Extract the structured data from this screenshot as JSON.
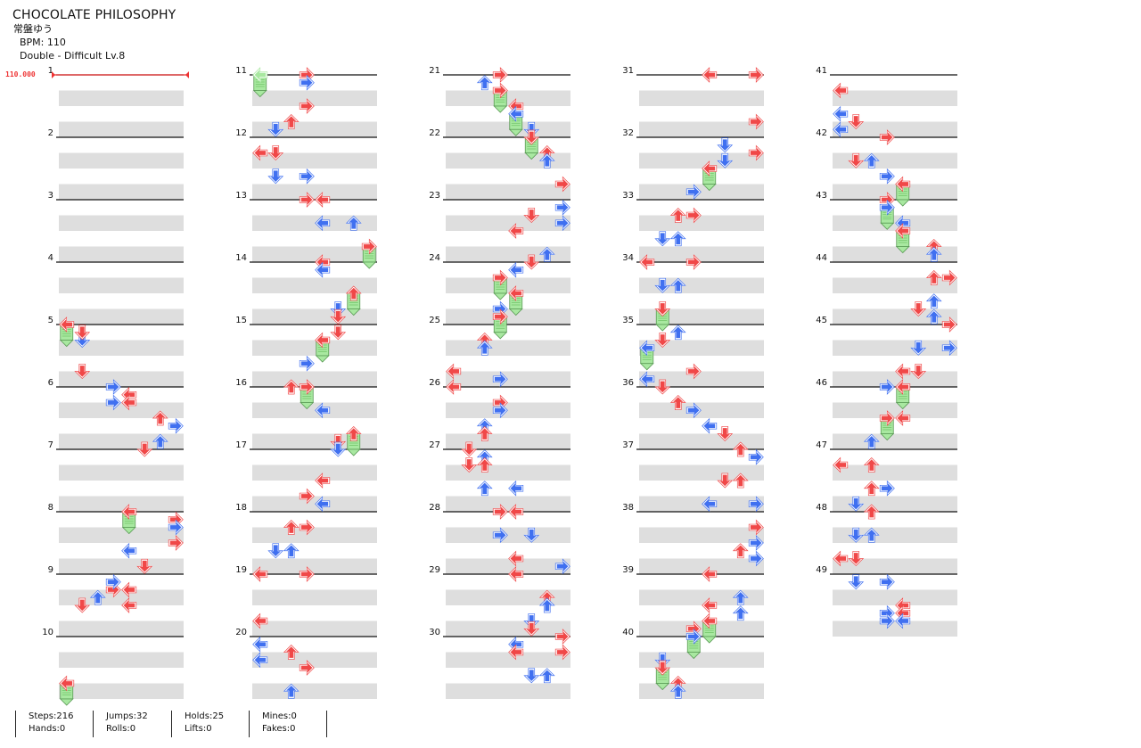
{
  "song": {
    "title": "CHOCOLATE PHILOSOPHY",
    "artist": "常盤ゆう",
    "bpm": "BPM: 110",
    "difficulty": "Double - Difficult Lv.8"
  },
  "bpm_marker": "110.000",
  "measure_labels": [
    "1",
    "2",
    "3",
    "4",
    "5",
    "6",
    "7",
    "8",
    "9",
    "10",
    "11",
    "12",
    "13",
    "14",
    "15",
    "16",
    "17",
    "18",
    "19",
    "20",
    "21",
    "22",
    "23",
    "24",
    "25",
    "26",
    "27",
    "28",
    "29",
    "30",
    "31",
    "32",
    "33",
    "34",
    "35",
    "36",
    "37",
    "38",
    "39",
    "40",
    "41",
    "42",
    "43",
    "44",
    "45",
    "46",
    "47",
    "48",
    "49"
  ],
  "colors": {
    "quarter": "#f04848",
    "eighth": "#4070f0",
    "hold": "#a8e8a0",
    "band": "#dedede"
  },
  "notes": [
    {
      "m": 5,
      "b": 0,
      "l": 0,
      "c": "r",
      "hold": 0.25
    },
    {
      "m": 5,
      "b": 0.25,
      "l": 1,
      "c": "b"
    },
    {
      "m": 5,
      "b": 0.125,
      "l": 1,
      "c": "r"
    },
    {
      "m": 5,
      "b": 0.75,
      "l": 1,
      "c": "r"
    },
    {
      "m": 5,
      "b": 1,
      "l": 3,
      "c": "b"
    },
    {
      "m": 5,
      "b": 1.25,
      "l": 3,
      "c": "b"
    },
    {
      "m": 5,
      "b": 1.125,
      "l": 4,
      "c": "r"
    },
    {
      "m": 6,
      "b": 0.25,
      "l": 4,
      "c": "r"
    },
    {
      "m": 6,
      "b": 0.5,
      "l": 6,
      "c": "r"
    },
    {
      "m": 6,
      "b": 0.625,
      "l": 7,
      "c": "b"
    },
    {
      "m": 6,
      "b": 0.875,
      "l": 6,
      "c": "b"
    },
    {
      "m": 6,
      "b": 1,
      "l": 5,
      "c": "r"
    },
    {
      "m": 7,
      "b": 1,
      "l": 4,
      "c": "r",
      "hold": 0.25
    },
    {
      "m": 7,
      "b": 1.125,
      "l": 7,
      "c": "r"
    },
    {
      "m": 7,
      "b": 1.25,
      "l": 7,
      "c": "b"
    },
    {
      "m": 7,
      "b": 1.5,
      "l": 7,
      "c": "r"
    },
    {
      "m": 8,
      "b": 0.625,
      "l": 4,
      "c": "b"
    },
    {
      "m": 8,
      "b": 0.875,
      "l": 5,
      "c": "r"
    },
    {
      "m": 8,
      "b": 1.25,
      "l": 3,
      "c": "r"
    },
    {
      "m": 8,
      "b": 1.25,
      "l": 4,
      "c": "r"
    },
    {
      "m": 8,
      "b": 1.5,
      "l": 4,
      "c": "r"
    },
    {
      "m": 9,
      "b": 0.125,
      "l": 3,
      "c": "b"
    },
    {
      "m": 9,
      "b": 0.375,
      "l": 2,
      "c": "b"
    },
    {
      "m": 9,
      "b": 0.5,
      "l": 1,
      "c": "r"
    },
    {
      "m": 10,
      "b": 0.75,
      "l": 0,
      "c": "r",
      "hold": 0.25
    },
    {
      "m": 11,
      "b": 0,
      "l": 0,
      "c": "g",
      "hold": 0.25
    },
    {
      "m": 11,
      "b": 0,
      "l": 3,
      "c": "r"
    },
    {
      "m": 11,
      "b": 0.125,
      "l": 3,
      "c": "b"
    },
    {
      "m": 11,
      "b": 0.5,
      "l": 3,
      "c": "r"
    },
    {
      "m": 11,
      "b": 0.75,
      "l": 2,
      "c": "r"
    },
    {
      "m": 11,
      "b": 0.875,
      "l": 1,
      "c": "b"
    },
    {
      "m": 12,
      "b": 0.25,
      "l": 0,
      "c": "r"
    },
    {
      "m": 12,
      "b": 0.25,
      "l": 1,
      "c": "r"
    },
    {
      "m": 12,
      "b": 0.625,
      "l": 1,
      "c": "b"
    },
    {
      "m": 12,
      "b": 0.625,
      "l": 3,
      "c": "b"
    },
    {
      "m": 13,
      "b": 0,
      "l": 3,
      "c": "r"
    },
    {
      "m": 13,
      "b": 0,
      "l": 4,
      "c": "r"
    },
    {
      "m": 13,
      "b": 0.375,
      "l": 4,
      "c": "b"
    },
    {
      "m": 13,
      "b": 0.375,
      "l": 6,
      "c": "b"
    },
    {
      "m": 13,
      "b": 0.75,
      "l": 7,
      "c": "r",
      "hold": 0.25
    },
    {
      "m": 14,
      "b": 0,
      "l": 4,
      "c": "r"
    },
    {
      "m": 14,
      "b": 0.125,
      "l": 4,
      "c": "b"
    },
    {
      "m": 14,
      "b": 0.5,
      "l": 6,
      "c": "r",
      "hold": 0.25
    },
    {
      "m": 14,
      "b": 0.75,
      "l": 5,
      "c": "b"
    },
    {
      "m": 14,
      "b": 0.875,
      "l": 5,
      "c": "r"
    },
    {
      "m": 15,
      "b": 0.125,
      "l": 5,
      "c": "r"
    },
    {
      "m": 15,
      "b": 0.25,
      "l": 4,
      "c": "r",
      "hold": 0.25
    },
    {
      "m": 15,
      "b": 0.625,
      "l": 3,
      "c": "b"
    },
    {
      "m": 16,
      "b": 0,
      "l": 2,
      "c": "r"
    },
    {
      "m": 16,
      "b": 0,
      "l": 3,
      "c": "r",
      "hold": 0.25
    },
    {
      "m": 16,
      "b": 0.375,
      "l": 4,
      "c": "b"
    },
    {
      "m": 16,
      "b": 0.75,
      "l": 6,
      "c": "r",
      "hold": 0.25
    },
    {
      "m": 16,
      "b": 0.875,
      "l": 5,
      "c": "r"
    },
    {
      "m": 17,
      "b": 0,
      "l": 5,
      "c": "b"
    },
    {
      "m": 17,
      "b": 0.5,
      "l": 4,
      "c": "r"
    },
    {
      "m": 17,
      "b": 0.75,
      "l": 3,
      "c": "r"
    },
    {
      "m": 17,
      "b": 0.875,
      "l": 4,
      "c": "b"
    },
    {
      "m": 18,
      "b": 0.25,
      "l": 2,
      "c": "r"
    },
    {
      "m": 18,
      "b": 0.25,
      "l": 3,
      "c": "r"
    },
    {
      "m": 18,
      "b": 0.625,
      "l": 1,
      "c": "b"
    },
    {
      "m": 18,
      "b": 0.625,
      "l": 2,
      "c": "b"
    },
    {
      "m": 19,
      "b": 0,
      "l": 0,
      "c": "r"
    },
    {
      "m": 19,
      "b": 0,
      "l": 3,
      "c": "r"
    },
    {
      "m": 19,
      "b": 0.75,
      "l": 0,
      "c": "r"
    },
    {
      "m": 20,
      "b": 0.125,
      "l": 0,
      "c": "b"
    },
    {
      "m": 20,
      "b": 0.375,
      "l": 0,
      "c": "b"
    },
    {
      "m": 20,
      "b": 0.25,
      "l": 2,
      "c": "r"
    },
    {
      "m": 20,
      "b": 0.5,
      "l": 3,
      "c": "r"
    },
    {
      "m": 20,
      "b": 0.875,
      "l": 2,
      "c": "b"
    },
    {
      "m": 21,
      "b": 0,
      "l": 3,
      "c": "r"
    },
    {
      "m": 21,
      "b": 0.125,
      "l": 2,
      "c": "b"
    },
    {
      "m": 21,
      "b": 0.25,
      "l": 3,
      "c": "r",
      "hold": 0.25
    },
    {
      "m": 21,
      "b": 0.5,
      "l": 4,
      "c": "r"
    },
    {
      "m": 21,
      "b": 0.625,
      "l": 4,
      "c": "b",
      "hold": 0.25
    },
    {
      "m": 21,
      "b": 0.875,
      "l": 5,
      "c": "b"
    },
    {
      "m": 22,
      "b": 0,
      "l": 5,
      "c": "r",
      "hold": 0.25
    },
    {
      "m": 22,
      "b": 0.25,
      "l": 6,
      "c": "r"
    },
    {
      "m": 22,
      "b": 0.375,
      "l": 6,
      "c": "b"
    },
    {
      "m": 22,
      "b": 0.75,
      "l": 7,
      "c": "r"
    },
    {
      "m": 23,
      "b": 0.125,
      "l": 7,
      "c": "b"
    },
    {
      "m": 23,
      "b": 0.375,
      "l": 7,
      "c": "b"
    },
    {
      "m": 23,
      "b": 0.25,
      "l": 5,
      "c": "r"
    },
    {
      "m": 23,
      "b": 0.5,
      "l": 4,
      "c": "r"
    },
    {
      "m": 23,
      "b": 0.875,
      "l": 6,
      "c": "b"
    },
    {
      "m": 24,
      "b": 0,
      "l": 5,
      "c": "r"
    },
    {
      "m": 24,
      "b": 0.125,
      "l": 4,
      "c": "b"
    },
    {
      "m": 24,
      "b": 0.25,
      "l": 3,
      "c": "r",
      "hold": 0.25
    },
    {
      "m": 24,
      "b": 0.5,
      "l": 4,
      "c": "r",
      "hold": 0.25
    },
    {
      "m": 24,
      "b": 0.75,
      "l": 3,
      "c": "b"
    },
    {
      "m": 24,
      "b": 0.875,
      "l": 3,
      "c": "r",
      "hold": 0.25
    },
    {
      "m": 25,
      "b": 0.25,
      "l": 2,
      "c": "r"
    },
    {
      "m": 25,
      "b": 0.375,
      "l": 2,
      "c": "b"
    },
    {
      "m": 25,
      "b": 0.75,
      "l": 0,
      "c": "r"
    },
    {
      "m": 25,
      "b": 1,
      "l": 0,
      "c": "r"
    },
    {
      "m": 25,
      "b": 0.875,
      "l": 3,
      "c": "b"
    },
    {
      "m": 26,
      "b": 0.25,
      "l": 3,
      "c": "r"
    },
    {
      "m": 26,
      "b": 0.375,
      "l": 3,
      "c": "b"
    },
    {
      "m": 26,
      "b": 0.625,
      "l": 2,
      "c": "b"
    },
    {
      "m": 26,
      "b": 0.75,
      "l": 2,
      "c": "r"
    },
    {
      "m": 27,
      "b": 0,
      "l": 1,
      "c": "r"
    },
    {
      "m": 27,
      "b": 0.125,
      "l": 2,
      "c": "b"
    },
    {
      "m": 27,
      "b": 0.25,
      "l": 1,
      "c": "r"
    },
    {
      "m": 27,
      "b": 0.25,
      "l": 2,
      "c": "r"
    },
    {
      "m": 27,
      "b": 0.625,
      "l": 2,
      "c": "b"
    },
    {
      "m": 27,
      "b": 0.625,
      "l": 4,
      "c": "b"
    },
    {
      "m": 28,
      "b": 0,
      "l": 3,
      "c": "r"
    },
    {
      "m": 28,
      "b": 0,
      "l": 4,
      "c": "r"
    },
    {
      "m": 28,
      "b": 0.375,
      "l": 3,
      "c": "b"
    },
    {
      "m": 28,
      "b": 0.375,
      "l": 5,
      "c": "b"
    },
    {
      "m": 28,
      "b": 0.75,
      "l": 4,
      "c": "r"
    },
    {
      "m": 29,
      "b": 0,
      "l": 4,
      "c": "r"
    },
    {
      "m": 28,
      "b": 0.875,
      "l": 7,
      "c": "b"
    },
    {
      "m": 29,
      "b": 0.375,
      "l": 6,
      "c": "r"
    },
    {
      "m": 29,
      "b": 0.5,
      "l": 6,
      "c": "b"
    },
    {
      "m": 29,
      "b": 0.75,
      "l": 5,
      "c": "b"
    },
    {
      "m": 29,
      "b": 0.875,
      "l": 5,
      "c": "r"
    },
    {
      "m": 30,
      "b": 0,
      "l": 7,
      "c": "r"
    },
    {
      "m": 30,
      "b": 0.125,
      "l": 4,
      "c": "b"
    },
    {
      "m": 30,
      "b": 0.25,
      "l": 4,
      "c": "r"
    },
    {
      "m": 30,
      "b": 0.25,
      "l": 7,
      "c": "r"
    },
    {
      "m": 30,
      "b": 0.625,
      "l": 5,
      "c": "b"
    },
    {
      "m": 30,
      "b": 0.625,
      "l": 6,
      "c": "b"
    },
    {
      "m": 31,
      "b": 0,
      "l": 4,
      "c": "r"
    },
    {
      "m": 31,
      "b": 0,
      "l": 7,
      "c": "r"
    },
    {
      "m": 31,
      "b": 0.75,
      "l": 7,
      "c": "r"
    },
    {
      "m": 32,
      "b": 0.125,
      "l": 5,
      "c": "b"
    },
    {
      "m": 32,
      "b": 0.375,
      "l": 5,
      "c": "b"
    },
    {
      "m": 32,
      "b": 0.25,
      "l": 7,
      "c": "r"
    },
    {
      "m": 32,
      "b": 0.5,
      "l": 4,
      "c": "r",
      "hold": 0.25
    },
    {
      "m": 32,
      "b": 0.875,
      "l": 3,
      "c": "b"
    },
    {
      "m": 33,
      "b": 0.25,
      "l": 2,
      "c": "r"
    },
    {
      "m": 33,
      "b": 0.25,
      "l": 3,
      "c": "r"
    },
    {
      "m": 33,
      "b": 0.625,
      "l": 1,
      "c": "b"
    },
    {
      "m": 33,
      "b": 0.625,
      "l": 2,
      "c": "b"
    },
    {
      "m": 34,
      "b": 0,
      "l": 0,
      "c": "r"
    },
    {
      "m": 34,
      "b": 0,
      "l": 3,
      "c": "r"
    },
    {
      "m": 34,
      "b": 0.375,
      "l": 1,
      "c": "b"
    },
    {
      "m": 34,
      "b": 0.375,
      "l": 2,
      "c": "b"
    },
    {
      "m": 34,
      "b": 0.75,
      "l": 1,
      "c": "r",
      "hold": 0.25
    },
    {
      "m": 35,
      "b": 0.125,
      "l": 2,
      "c": "b"
    },
    {
      "m": 35,
      "b": 0.25,
      "l": 1,
      "c": "r"
    },
    {
      "m": 35,
      "b": 0.375,
      "l": 0,
      "c": "b",
      "hold": 0.25
    },
    {
      "m": 35,
      "b": 0.75,
      "l": 3,
      "c": "r"
    },
    {
      "m": 35,
      "b": 0.875,
      "l": 0,
      "c": "b"
    },
    {
      "m": 36,
      "b": 0,
      "l": 1,
      "c": "r"
    },
    {
      "m": 36,
      "b": 0.25,
      "l": 2,
      "c": "r"
    },
    {
      "m": 36,
      "b": 0.375,
      "l": 3,
      "c": "b"
    },
    {
      "m": 36,
      "b": 0.625,
      "l": 4,
      "c": "b"
    },
    {
      "m": 36,
      "b": 0.75,
      "l": 5,
      "c": "r"
    },
    {
      "m": 37,
      "b": 0,
      "l": 6,
      "c": "r"
    },
    {
      "m": 37,
      "b": 0.125,
      "l": 7,
      "c": "b"
    },
    {
      "m": 37,
      "b": 0.5,
      "l": 5,
      "c": "r"
    },
    {
      "m": 37,
      "b": 0.5,
      "l": 6,
      "c": "r"
    },
    {
      "m": 37,
      "b": 0.875,
      "l": 4,
      "c": "b"
    },
    {
      "m": 37,
      "b": 0.875,
      "l": 7,
      "c": "b"
    },
    {
      "m": 38,
      "b": 0.25,
      "l": 7,
      "c": "r"
    },
    {
      "m": 38,
      "b": 0.5,
      "l": 7,
      "c": "b"
    },
    {
      "m": 38,
      "b": 0.625,
      "l": 6,
      "c": "r"
    },
    {
      "m": 38,
      "b": 0.75,
      "l": 7,
      "c": "b"
    },
    {
      "m": 39,
      "b": 0,
      "l": 4,
      "c": "r"
    },
    {
      "m": 39,
      "b": 0.375,
      "l": 6,
      "c": "b"
    },
    {
      "m": 39,
      "b": 0.625,
      "l": 6,
      "c": "b"
    },
    {
      "m": 39,
      "b": 0.5,
      "l": 4,
      "c": "r"
    },
    {
      "m": 39,
      "b": 0.75,
      "l": 4,
      "c": "r",
      "hold": 0.25
    },
    {
      "m": 39,
      "b": 0.875,
      "l": 3,
      "c": "r"
    },
    {
      "m": 40,
      "b": 0,
      "l": 3,
      "c": "b",
      "hold": 0.25
    },
    {
      "m": 40,
      "b": 0.375,
      "l": 1,
      "c": "b"
    },
    {
      "m": 40,
      "b": 0.5,
      "l": 1,
      "c": "r",
      "hold": 0.25
    },
    {
      "m": 40,
      "b": 0.75,
      "l": 2,
      "c": "r"
    },
    {
      "m": 40,
      "b": 0.875,
      "l": 2,
      "c": "b"
    },
    {
      "m": 41,
      "b": 0.25,
      "l": 0,
      "c": "r"
    },
    {
      "m": 41,
      "b": 0.625,
      "l": 0,
      "c": "b"
    },
    {
      "m": 41,
      "b": 0.75,
      "l": 1,
      "c": "r"
    },
    {
      "m": 41,
      "b": 0.875,
      "l": 0,
      "c": "b"
    },
    {
      "m": 42,
      "b": 0,
      "l": 3,
      "c": "r"
    },
    {
      "m": 42,
      "b": 0.375,
      "l": 1,
      "c": "r"
    },
    {
      "m": 42,
      "b": 0.375,
      "l": 2,
      "c": "b"
    },
    {
      "m": 42,
      "b": 0.625,
      "l": 3,
      "c": "b"
    },
    {
      "m": 42,
      "b": 0.75,
      "l": 4,
      "c": "r",
      "hold": 0.25
    },
    {
      "m": 43,
      "b": 0,
      "l": 3,
      "c": "r"
    },
    {
      "m": 43,
      "b": 0.125,
      "l": 3,
      "c": "b",
      "hold": 0.25
    },
    {
      "m": 43,
      "b": 0.375,
      "l": 4,
      "c": "b"
    },
    {
      "m": 43,
      "b": 0.5,
      "l": 4,
      "c": "r",
      "hold": 0.25
    },
    {
      "m": 43,
      "b": 0.75,
      "l": 6,
      "c": "r"
    },
    {
      "m": 43,
      "b": 0.875,
      "l": 6,
      "c": "b"
    },
    {
      "m": 44,
      "b": 0.25,
      "l": 6,
      "c": "r"
    },
    {
      "m": 44,
      "b": 0.25,
      "l": 7,
      "c": "r"
    },
    {
      "m": 44,
      "b": 0.625,
      "l": 6,
      "c": "b"
    },
    {
      "m": 44,
      "b": 0.75,
      "l": 5,
      "c": "r"
    },
    {
      "m": 44,
      "b": 0.875,
      "l": 6,
      "c": "b"
    },
    {
      "m": 45,
      "b": 0,
      "l": 7,
      "c": "r"
    },
    {
      "m": 45,
      "b": 0.375,
      "l": 5,
      "c": "b"
    },
    {
      "m": 45,
      "b": 0.375,
      "l": 7,
      "c": "b"
    },
    {
      "m": 45,
      "b": 0.75,
      "l": 4,
      "c": "r"
    },
    {
      "m": 45,
      "b": 0.75,
      "l": 5,
      "c": "r"
    },
    {
      "m": 46,
      "b": 0,
      "l": 3,
      "c": "b"
    },
    {
      "m": 46,
      "b": 0,
      "l": 4,
      "c": "r",
      "hold": 0.25
    },
    {
      "m": 46,
      "b": 0.5,
      "l": 3,
      "c": "r",
      "hold": 0.25
    },
    {
      "m": 46,
      "b": 0.5,
      "l": 4,
      "c": "r"
    },
    {
      "m": 46,
      "b": 0.875,
      "l": 2,
      "c": "b"
    },
    {
      "m": 47,
      "b": 0.25,
      "l": 0,
      "c": "r"
    },
    {
      "m": 47,
      "b": 0.25,
      "l": 2,
      "c": "r"
    },
    {
      "m": 47,
      "b": 0.625,
      "l": 2,
      "c": "r"
    },
    {
      "m": 47,
      "b": 0.625,
      "l": 3,
      "c": "b"
    },
    {
      "m": 47,
      "b": 0.875,
      "l": 1,
      "c": "b"
    },
    {
      "m": 48,
      "b": 0,
      "l": 2,
      "c": "r"
    },
    {
      "m": 48,
      "b": 0.375,
      "l": 1,
      "c": "b"
    },
    {
      "m": 48,
      "b": 0.375,
      "l": 2,
      "c": "b"
    },
    {
      "m": 48,
      "b": 0.75,
      "l": 0,
      "c": "r"
    },
    {
      "m": 48,
      "b": 0.75,
      "l": 1,
      "c": "r"
    },
    {
      "m": 49,
      "b": 0.125,
      "l": 1,
      "c": "b"
    },
    {
      "m": 49,
      "b": 0.125,
      "l": 3,
      "c": "b"
    },
    {
      "m": 49,
      "b": 0.5,
      "l": 4,
      "c": "r"
    },
    {
      "m": 49,
      "b": 0.625,
      "l": 3,
      "c": "b"
    },
    {
      "m": 49,
      "b": 0.75,
      "l": 3,
      "c": "b"
    },
    {
      "m": 49,
      "b": 0.625,
      "l": 4,
      "c": "r"
    },
    {
      "m": 49,
      "b": 0.75,
      "l": 4,
      "c": "b"
    }
  ],
  "stats": {
    "col1": [
      "Steps:216",
      "Hands:0"
    ],
    "col2": [
      "Jumps:32",
      "Rolls:0"
    ],
    "col3": [
      "Holds:25",
      "Lifts:0"
    ],
    "col4": [
      "Mines:0",
      "Fakes:0"
    ]
  }
}
